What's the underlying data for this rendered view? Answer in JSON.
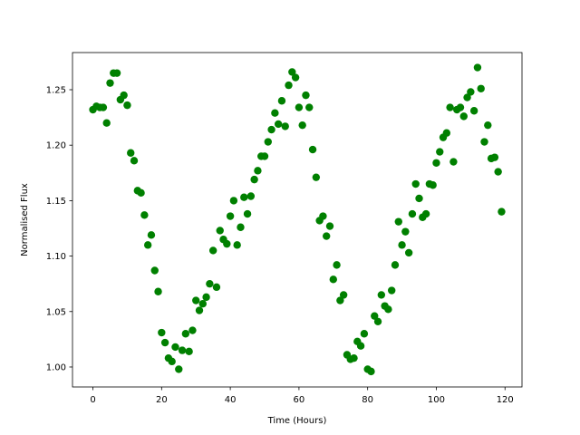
{
  "chart_data": {
    "type": "scatter",
    "xlabel": "Time (Hours)",
    "ylabel": "Normalised Flux",
    "color": "#008000",
    "x": [
      0,
      1,
      2,
      3,
      4,
      5,
      6,
      7,
      8,
      9,
      10,
      11,
      12,
      13,
      14,
      15,
      16,
      17,
      18,
      19,
      20,
      21,
      22,
      23,
      24,
      25,
      26,
      27,
      28,
      29,
      30,
      31,
      32,
      33,
      34,
      35,
      36,
      37,
      38,
      39,
      40,
      41,
      42,
      43,
      44,
      45,
      46,
      47,
      48,
      49,
      50,
      51,
      52,
      53,
      54,
      55,
      56,
      57,
      58,
      59,
      60,
      61,
      62,
      63,
      64,
      65,
      66,
      67,
      68,
      69,
      70,
      71,
      72,
      73,
      74,
      75,
      76,
      77,
      78,
      79,
      80,
      81,
      82,
      83,
      84,
      85,
      86,
      87,
      88,
      89,
      90,
      91,
      92,
      93,
      94,
      95,
      96,
      97,
      98,
      99,
      100,
      101,
      102,
      103,
      104,
      105,
      106,
      107,
      108,
      109,
      110,
      111,
      112,
      113,
      114,
      115,
      116,
      117,
      118,
      119
    ],
    "y": [
      1.232,
      1.235,
      1.234,
      1.234,
      1.22,
      1.256,
      1.265,
      1.265,
      1.241,
      1.245,
      1.236,
      1.193,
      1.186,
      1.159,
      1.157,
      1.137,
      1.11,
      1.119,
      1.087,
      1.068,
      1.031,
      1.022,
      1.008,
      1.005,
      1.018,
      0.998,
      1.015,
      1.03,
      1.014,
      1.033,
      1.06,
      1.051,
      1.057,
      1.063,
      1.075,
      1.105,
      1.072,
      1.123,
      1.115,
      1.111,
      1.136,
      1.15,
      1.11,
      1.126,
      1.153,
      1.138,
      1.154,
      1.169,
      1.177,
      1.19,
      1.19,
      1.203,
      1.214,
      1.229,
      1.219,
      1.24,
      1.217,
      1.254,
      1.266,
      1.261,
      1.234,
      1.218,
      1.245,
      1.234,
      1.196,
      1.171,
      1.132,
      1.136,
      1.118,
      1.127,
      1.079,
      1.092,
      1.06,
      1.065,
      1.011,
      1.007,
      1.008,
      1.023,
      1.019,
      1.03,
      0.998,
      0.996,
      1.046,
      1.041,
      1.065,
      1.055,
      1.052,
      1.069,
      1.092,
      1.131,
      1.11,
      1.122,
      1.103,
      1.138,
      1.165,
      1.152,
      1.135,
      1.138,
      1.165,
      1.164,
      1.184,
      1.194,
      1.207,
      1.211,
      1.234,
      1.185,
      1.232,
      1.234,
      1.226,
      1.243,
      1.248,
      1.231,
      1.27,
      1.251,
      1.203,
      1.218,
      1.188,
      1.189,
      1.176,
      1.14
    ],
    "xlim": [
      -5.95,
      124.95
    ],
    "ylim": [
      0.982,
      1.2835
    ],
    "xticks": [
      0,
      20,
      40,
      60,
      80,
      100,
      120
    ],
    "yticks": [
      {
        "value": 1.0,
        "label": "1.00"
      },
      {
        "value": 1.05,
        "label": "1.05"
      },
      {
        "value": 1.1,
        "label": "1.10"
      },
      {
        "value": 1.15,
        "label": "1.15"
      },
      {
        "value": 1.2,
        "label": "1.20"
      },
      {
        "value": 1.25,
        "label": "1.25"
      }
    ]
  }
}
